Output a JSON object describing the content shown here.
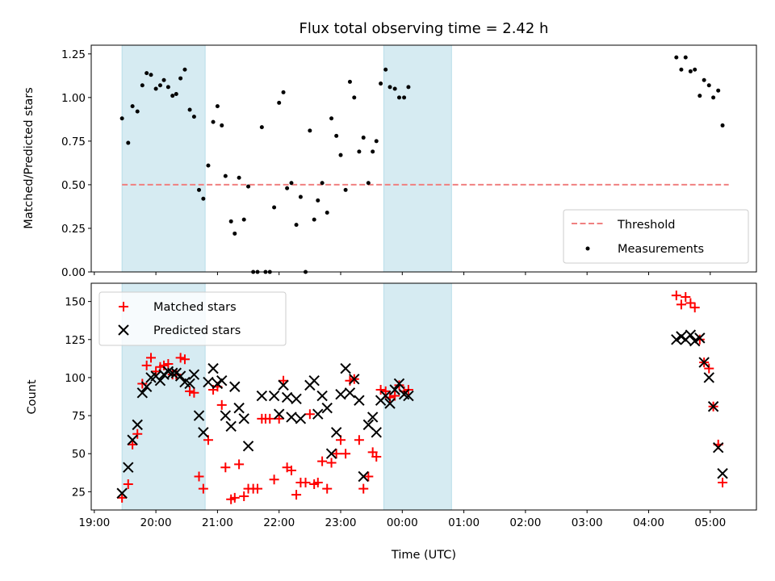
{
  "chart_data": {
    "title": "Flux total observing time = 2.42 h",
    "xlabel": "Time (UTC)",
    "x_units": "hours after 19:00 UTC (x-axis ticks printed as clock times)",
    "x_ticks": [
      "19:00",
      "20:00",
      "21:00",
      "22:00",
      "23:00",
      "00:00",
      "01:00",
      "02:00",
      "03:00",
      "04:00",
      "05:00"
    ],
    "xlim": [
      -0.05,
      10.75
    ],
    "shaded_intervals": [
      [
        0.45,
        1.8
      ],
      [
        4.7,
        5.8
      ]
    ],
    "shade_color": "#add8e6",
    "panels": [
      {
        "type": "scatter",
        "ylabel": "Matched/Predicted stars",
        "ylim": [
          0,
          1.3
        ],
        "y_ticks": [
          "0.00",
          "0.25",
          "0.50",
          "0.75",
          "1.00",
          "1.25"
        ],
        "y_tick_values": [
          0,
          0.25,
          0.5,
          0.75,
          1.0,
          1.25
        ],
        "legend_position": "lower-right",
        "threshold": {
          "name": "Threshold",
          "value": 0.5,
          "x_range": [
            0.45,
            10.3
          ],
          "color": "#f08080"
        },
        "measurements": {
          "name": "Measurements",
          "color": "#000000",
          "points": [
            [
              0.45,
              0.88
            ],
            [
              0.55,
              0.74
            ],
            [
              0.62,
              0.95
            ],
            [
              0.7,
              0.92
            ],
            [
              0.78,
              1.07
            ],
            [
              0.85,
              1.14
            ],
            [
              0.92,
              1.13
            ],
            [
              1.0,
              1.05
            ],
            [
              1.07,
              1.07
            ],
            [
              1.13,
              1.1
            ],
            [
              1.2,
              1.06
            ],
            [
              1.27,
              1.01
            ],
            [
              1.33,
              1.02
            ],
            [
              1.4,
              1.11
            ],
            [
              1.47,
              1.16
            ],
            [
              1.55,
              0.93
            ],
            [
              1.62,
              0.89
            ],
            [
              1.7,
              0.47
            ],
            [
              1.77,
              0.42
            ],
            [
              1.85,
              0.61
            ],
            [
              1.93,
              0.86
            ],
            [
              2.0,
              0.95
            ],
            [
              2.07,
              0.84
            ],
            [
              2.13,
              0.55
            ],
            [
              2.22,
              0.29
            ],
            [
              2.28,
              0.22
            ],
            [
              2.35,
              0.54
            ],
            [
              2.43,
              0.3
            ],
            [
              2.5,
              0.49
            ],
            [
              2.58,
              0.0
            ],
            [
              2.65,
              0.0
            ],
            [
              2.72,
              0.83
            ],
            [
              2.78,
              0.0
            ],
            [
              2.85,
              0.0
            ],
            [
              2.92,
              0.37
            ],
            [
              3.0,
              0.97
            ],
            [
              3.07,
              1.03
            ],
            [
              3.13,
              0.48
            ],
            [
              3.2,
              0.51
            ],
            [
              3.28,
              0.27
            ],
            [
              3.35,
              0.43
            ],
            [
              3.43,
              0.0
            ],
            [
              3.5,
              0.81
            ],
            [
              3.57,
              0.3
            ],
            [
              3.63,
              0.41
            ],
            [
              3.7,
              0.51
            ],
            [
              3.78,
              0.34
            ],
            [
              3.85,
              0.88
            ],
            [
              3.93,
              0.78
            ],
            [
              4.0,
              0.67
            ],
            [
              4.08,
              0.47
            ],
            [
              4.15,
              1.09
            ],
            [
              4.22,
              1.0
            ],
            [
              4.3,
              0.69
            ],
            [
              4.37,
              0.77
            ],
            [
              4.45,
              0.51
            ],
            [
              4.52,
              0.69
            ],
            [
              4.58,
              0.75
            ],
            [
              4.65,
              1.08
            ],
            [
              4.73,
              1.16
            ],
            [
              4.8,
              1.06
            ],
            [
              4.88,
              1.05
            ],
            [
              4.95,
              1.0
            ],
            [
              5.03,
              1.0
            ],
            [
              5.1,
              1.06
            ],
            [
              9.45,
              1.23
            ],
            [
              9.53,
              1.16
            ],
            [
              9.6,
              1.23
            ],
            [
              9.68,
              1.15
            ],
            [
              9.75,
              1.16
            ],
            [
              9.83,
              1.01
            ],
            [
              9.9,
              1.1
            ],
            [
              9.98,
              1.07
            ],
            [
              10.05,
              1.0
            ],
            [
              10.13,
              1.04
            ],
            [
              10.2,
              0.84
            ]
          ]
        }
      },
      {
        "type": "scatter",
        "ylabel": "Count",
        "ylim": [
          13,
          162
        ],
        "y_ticks": [
          "25",
          "50",
          "75",
          "100",
          "125",
          "150"
        ],
        "y_tick_values": [
          25,
          50,
          75,
          100,
          125,
          150
        ],
        "legend_position": "upper-left",
        "series": [
          {
            "name": "Matched stars",
            "marker": "plus",
            "color": "#ff0000",
            "points": [
              [
                0.45,
                21
              ],
              [
                0.55,
                30
              ],
              [
                0.62,
                56
              ],
              [
                0.7,
                63
              ],
              [
                0.78,
                96
              ],
              [
                0.85,
                108
              ],
              [
                0.92,
                113
              ],
              [
                1.0,
                104
              ],
              [
                1.07,
                107
              ],
              [
                1.13,
                108
              ],
              [
                1.2,
                109
              ],
              [
                1.27,
                102
              ],
              [
                1.33,
                102
              ],
              [
                1.4,
                113
              ],
              [
                1.47,
                112
              ],
              [
                1.55,
                91
              ],
              [
                1.62,
                90
              ],
              [
                1.7,
                35
              ],
              [
                1.77,
                27
              ],
              [
                1.85,
                59
              ],
              [
                1.93,
                92
              ],
              [
                2.0,
                94
              ],
              [
                2.07,
                82
              ],
              [
                2.13,
                41
              ],
              [
                2.22,
                20
              ],
              [
                2.28,
                21
              ],
              [
                2.35,
                43
              ],
              [
                2.43,
                22
              ],
              [
                2.5,
                27
              ],
              [
                2.58,
                27
              ],
              [
                2.65,
                27
              ],
              [
                2.72,
                73
              ],
              [
                2.78,
                73
              ],
              [
                2.85,
                73
              ],
              [
                2.92,
                33
              ],
              [
                3.0,
                73
              ],
              [
                3.07,
                98
              ],
              [
                3.13,
                41
              ],
              [
                3.2,
                39
              ],
              [
                3.28,
                23
              ],
              [
                3.35,
                31
              ],
              [
                3.43,
                31
              ],
              [
                3.5,
                76
              ],
              [
                3.57,
                30
              ],
              [
                3.63,
                31
              ],
              [
                3.7,
                45
              ],
              [
                3.78,
                27
              ],
              [
                3.85,
                44
              ],
              [
                3.93,
                50
              ],
              [
                4.0,
                59
              ],
              [
                4.08,
                50
              ],
              [
                4.15,
                98
              ],
              [
                4.22,
                99
              ],
              [
                4.3,
                59
              ],
              [
                4.37,
                27
              ],
              [
                4.45,
                35
              ],
              [
                4.52,
                51
              ],
              [
                4.58,
                48
              ],
              [
                4.65,
                92
              ],
              [
                4.73,
                91
              ],
              [
                4.8,
                87
              ],
              [
                4.88,
                88
              ],
              [
                4.95,
                95
              ],
              [
                5.03,
                91
              ],
              [
                5.1,
                92
              ],
              [
                9.45,
                154
              ],
              [
                9.53,
                148
              ],
              [
                9.6,
                153
              ],
              [
                9.68,
                149
              ],
              [
                9.75,
                146
              ],
              [
                9.83,
                125
              ],
              [
                9.9,
                110
              ],
              [
                9.98,
                106
              ],
              [
                10.05,
                81
              ],
              [
                10.13,
                56
              ],
              [
                10.2,
                31
              ]
            ]
          },
          {
            "name": "Predicted stars",
            "marker": "x",
            "color": "#000000",
            "points": [
              [
                0.45,
                24
              ],
              [
                0.55,
                41
              ],
              [
                0.62,
                59
              ],
              [
                0.7,
                69
              ],
              [
                0.78,
                90
              ],
              [
                0.85,
                94
              ],
              [
                0.92,
                100
              ],
              [
                1.0,
                101
              ],
              [
                1.07,
                98
              ],
              [
                1.13,
                102
              ],
              [
                1.2,
                104
              ],
              [
                1.27,
                103
              ],
              [
                1.33,
                103
              ],
              [
                1.4,
                101
              ],
              [
                1.47,
                97
              ],
              [
                1.55,
                96
              ],
              [
                1.62,
                102
              ],
              [
                1.7,
                75
              ],
              [
                1.77,
                64
              ],
              [
                1.85,
                97
              ],
              [
                1.93,
                106
              ],
              [
                2.0,
                96
              ],
              [
                2.07,
                98
              ],
              [
                2.13,
                75
              ],
              [
                2.22,
                68
              ],
              [
                2.28,
                94
              ],
              [
                2.35,
                80
              ],
              [
                2.43,
                73
              ],
              [
                2.5,
                55
              ],
              [
                2.72,
                88
              ],
              [
                2.92,
                88
              ],
              [
                3.0,
                76
              ],
              [
                3.07,
                95
              ],
              [
                3.13,
                87
              ],
              [
                3.2,
                74
              ],
              [
                3.28,
                86
              ],
              [
                3.35,
                73
              ],
              [
                3.5,
                95
              ],
              [
                3.57,
                98
              ],
              [
                3.63,
                76
              ],
              [
                3.7,
                88
              ],
              [
                3.78,
                80
              ],
              [
                3.85,
                50
              ],
              [
                3.93,
                64
              ],
              [
                4.0,
                89
              ],
              [
                4.08,
                106
              ],
              [
                4.15,
                90
              ],
              [
                4.22,
                99
              ],
              [
                4.3,
                85
              ],
              [
                4.37,
                35
              ],
              [
                4.45,
                69
              ],
              [
                4.52,
                74
              ],
              [
                4.58,
                64
              ],
              [
                4.65,
                85
              ],
              [
                4.73,
                88
              ],
              [
                4.8,
                83
              ],
              [
                4.88,
                92
              ],
              [
                4.95,
                96
              ],
              [
                5.03,
                89
              ],
              [
                5.1,
                88
              ],
              [
                9.45,
                125
              ],
              [
                9.53,
                127
              ],
              [
                9.6,
                125
              ],
              [
                9.68,
                128
              ],
              [
                9.75,
                124
              ],
              [
                9.83,
                126
              ],
              [
                9.9,
                110
              ],
              [
                9.98,
                100
              ],
              [
                10.05,
                81
              ],
              [
                10.13,
                54
              ],
              [
                10.2,
                37
              ]
            ]
          }
        ]
      }
    ]
  }
}
